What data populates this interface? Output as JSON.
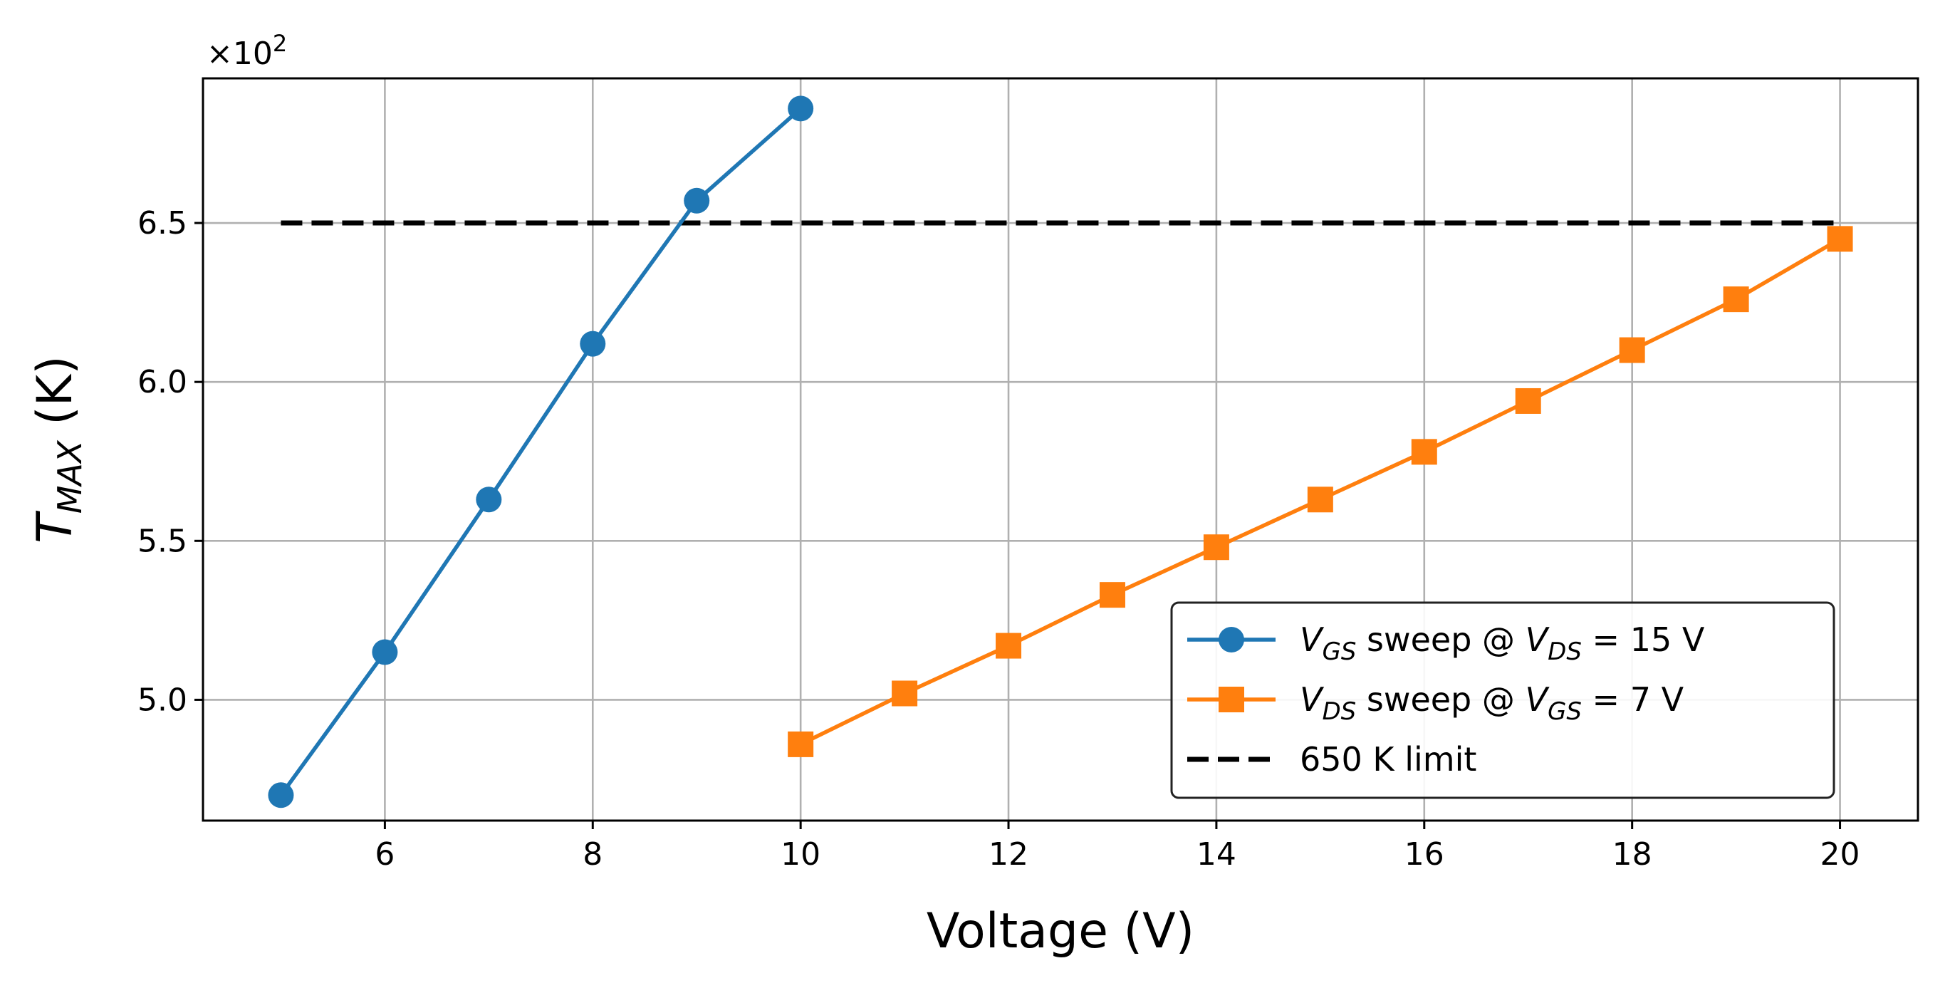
{
  "chart_data": {
    "type": "line",
    "title": "",
    "xlabel": "Voltage (V)",
    "ylabel": {
      "main": "T",
      "sub": "MAX",
      "unit": " (K)"
    },
    "y_scale_label": {
      "base": "×10",
      "exp": "2"
    },
    "xlim": [
      4.25,
      20.75
    ],
    "ylim": [
      4.62,
      6.955
    ],
    "x_ticks": [
      6,
      8,
      10,
      12,
      14,
      16,
      18,
      20
    ],
    "x_tick_labels": [
      "6",
      "8",
      "10",
      "12",
      "14",
      "16",
      "18",
      "20"
    ],
    "y_ticks": [
      5.0,
      5.5,
      6.0,
      6.5
    ],
    "y_tick_labels": [
      "5.0",
      "5.5",
      "6.0",
      "6.5"
    ],
    "grid": true,
    "legend_position": "lower-right",
    "series": [
      {
        "name": "VGS sweep @ VDS = 15 V",
        "label_parts": [
          {
            "text": "V",
            "italic": true
          },
          {
            "text": "GS",
            "italic": true,
            "sub": true
          },
          {
            "text": " sweep @ "
          },
          {
            "text": "V",
            "italic": true
          },
          {
            "text": "DS",
            "italic": true,
            "sub": true
          },
          {
            "text": " = 15 V"
          }
        ],
        "color": "#1f77b4",
        "marker": "circle",
        "x": [
          5,
          6,
          7,
          8,
          9,
          10
        ],
        "y": [
          4.7,
          5.15,
          5.63,
          6.12,
          6.57,
          6.86
        ]
      },
      {
        "name": "VDS sweep @ VGS = 7 V",
        "label_parts": [
          {
            "text": "V",
            "italic": true
          },
          {
            "text": "DS",
            "italic": true,
            "sub": true
          },
          {
            "text": " sweep @ "
          },
          {
            "text": "V",
            "italic": true
          },
          {
            "text": "GS",
            "italic": true,
            "sub": true
          },
          {
            "text": " = 7 V"
          }
        ],
        "color": "#ff7f0e",
        "marker": "square",
        "x": [
          10,
          11,
          12,
          13,
          14,
          15,
          16,
          17,
          18,
          19,
          20
        ],
        "y": [
          4.86,
          5.02,
          5.17,
          5.33,
          5.48,
          5.63,
          5.78,
          5.94,
          6.1,
          6.26,
          6.45
        ]
      }
    ],
    "reference_line": {
      "name": "650 K limit",
      "label": "650 K limit",
      "color": "#000000",
      "style": "dashed",
      "y": 6.5,
      "x_range": [
        5,
        20
      ]
    }
  }
}
